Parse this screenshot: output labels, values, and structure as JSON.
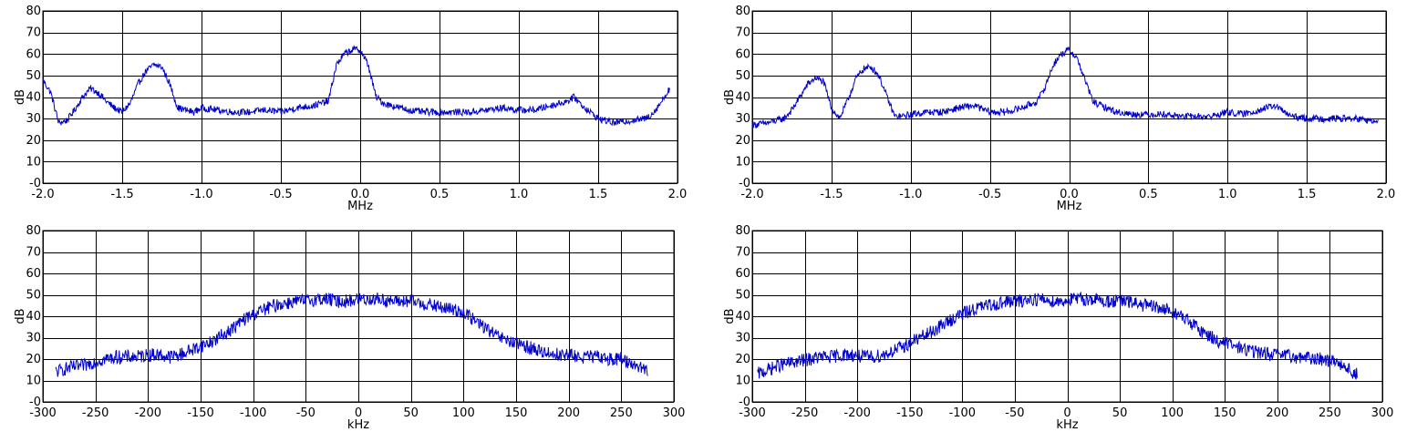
{
  "colors": {
    "trace": "#0000cc",
    "grid": "#000000",
    "background": "#ffffff"
  },
  "chart_data": [
    {
      "type": "line",
      "xlabel": "MHz",
      "ylabel": "dB",
      "xlim": [
        -2.0,
        2.0
      ],
      "ylim": [
        0,
        80
      ],
      "xticks": [
        -2.0,
        -1.5,
        -1.0,
        -0.5,
        0.0,
        0.5,
        1.0,
        1.5,
        2.0
      ],
      "xtick_labels": [
        "-2.0",
        "-1.5",
        "-1.0",
        "-0.5",
        "0.0",
        "0.5",
        "1.0",
        "1.5",
        "2.0"
      ],
      "yticks": [
        0,
        10,
        20,
        30,
        40,
        50,
        60,
        70,
        80
      ],
      "ytick_labels": [
        "-0",
        "10",
        "20",
        "30",
        "40",
        "50",
        "60",
        "70",
        "80"
      ],
      "grid": true,
      "series": [
        {
          "x": [
            -2.0,
            -1.95,
            -1.9,
            -1.85,
            -1.8,
            -1.75,
            -1.7,
            -1.65,
            -1.6,
            -1.55,
            -1.5,
            -1.45,
            -1.4,
            -1.35,
            -1.3,
            -1.25,
            -1.2,
            -1.15,
            -1.1,
            -1.05,
            -1.0,
            -0.9,
            -0.8,
            -0.7,
            -0.6,
            -0.5,
            -0.4,
            -0.3,
            -0.2,
            -0.15,
            -0.1,
            -0.05,
            0.0,
            0.05,
            0.1,
            0.15,
            0.2,
            0.3,
            0.4,
            0.5,
            0.6,
            0.7,
            0.8,
            0.9,
            1.0,
            1.1,
            1.2,
            1.3,
            1.35,
            1.4,
            1.5,
            1.6,
            1.7,
            1.8,
            1.85,
            1.9,
            1.95
          ],
          "y": [
            48,
            42,
            28,
            29,
            34,
            40,
            44,
            42,
            38,
            35,
            33,
            37,
            46,
            52,
            55,
            54,
            46,
            35,
            34,
            33,
            35,
            34,
            33,
            33,
            34,
            33,
            35,
            36,
            38,
            55,
            60,
            62,
            62,
            55,
            40,
            37,
            36,
            34,
            33,
            33,
            33,
            33,
            34,
            35,
            34,
            34,
            36,
            38,
            40,
            36,
            30,
            28,
            29,
            30,
            33,
            38,
            44
          ]
        }
      ]
    },
    {
      "type": "line",
      "xlabel": "MHz",
      "ylabel": "dB",
      "xlim": [
        -2.0,
        2.0
      ],
      "ylim": [
        0,
        80
      ],
      "xticks": [
        -2.0,
        -1.5,
        -1.0,
        -0.5,
        0.0,
        0.5,
        1.0,
        1.5,
        2.0
      ],
      "xtick_labels": [
        "-2.0",
        "-1.5",
        "-1.0",
        "-0.5",
        "0.0",
        "0.5",
        "1.0",
        "1.5",
        "2.0"
      ],
      "yticks": [
        0,
        10,
        20,
        30,
        40,
        50,
        60,
        70,
        80
      ],
      "ytick_labels": [
        "-0",
        "10",
        "20",
        "30",
        "40",
        "50",
        "60",
        "70",
        "80"
      ],
      "grid": true,
      "series": [
        {
          "x": [
            -2.0,
            -1.9,
            -1.8,
            -1.75,
            -1.7,
            -1.65,
            -1.6,
            -1.55,
            -1.5,
            -1.45,
            -1.4,
            -1.35,
            -1.3,
            -1.25,
            -1.2,
            -1.15,
            -1.1,
            -1.05,
            -1.0,
            -0.9,
            -0.8,
            -0.7,
            -0.6,
            -0.5,
            -0.4,
            -0.3,
            -0.2,
            -0.15,
            -0.1,
            -0.05,
            0.0,
            0.05,
            0.1,
            0.15,
            0.2,
            0.3,
            0.4,
            0.5,
            0.6,
            0.7,
            0.8,
            0.9,
            1.0,
            1.1,
            1.2,
            1.3,
            1.4,
            1.5,
            1.6,
            1.7,
            1.8,
            1.9,
            1.95
          ],
          "y": [
            27,
            28,
            30,
            34,
            40,
            46,
            49,
            47,
            35,
            30,
            38,
            48,
            53,
            54,
            50,
            40,
            31,
            31,
            32,
            33,
            33,
            35,
            36,
            33,
            33,
            35,
            38,
            45,
            55,
            60,
            62,
            58,
            48,
            38,
            36,
            33,
            32,
            32,
            32,
            31,
            31,
            31,
            33,
            32,
            34,
            36,
            31,
            30,
            30,
            30,
            30,
            29,
            28
          ]
        }
      ]
    },
    {
      "type": "line",
      "xlabel": "kHz",
      "ylabel": "dB",
      "xlim": [
        -300,
        300
      ],
      "ylim": [
        0,
        80
      ],
      "xticks": [
        -300,
        -250,
        -200,
        -150,
        -100,
        -50,
        0,
        50,
        100,
        150,
        200,
        250,
        300
      ],
      "xtick_labels": [
        "-300",
        "-250",
        "-200",
        "-150",
        "-100",
        "-50",
        "0",
        "50",
        "100",
        "150",
        "200",
        "250",
        "300"
      ],
      "yticks": [
        0,
        10,
        20,
        30,
        40,
        50,
        60,
        70,
        80
      ],
      "ytick_labels": [
        "-0",
        "10",
        "20",
        "30",
        "40",
        "50",
        "60",
        "70",
        "80"
      ],
      "grid": true,
      "series": [
        {
          "x": [
            -288,
            -275,
            -260,
            -250,
            -240,
            -230,
            -220,
            -210,
            -200,
            -190,
            -180,
            -170,
            -160,
            -150,
            -140,
            -130,
            -120,
            -110,
            -100,
            -90,
            -80,
            -70,
            -60,
            -50,
            -40,
            -30,
            -20,
            -10,
            0,
            10,
            20,
            30,
            40,
            50,
            60,
            70,
            80,
            90,
            100,
            110,
            120,
            130,
            140,
            150,
            160,
            170,
            180,
            190,
            200,
            210,
            220,
            230,
            240,
            250,
            260,
            270,
            275
          ],
          "y": [
            14,
            16,
            17,
            19,
            20,
            21,
            21,
            21,
            22,
            22,
            21,
            22,
            24,
            26,
            28,
            31,
            34,
            38,
            41,
            43,
            45,
            46,
            47,
            47,
            48,
            48,
            47,
            47,
            48,
            48,
            48,
            47,
            47,
            47,
            46,
            45,
            44,
            43,
            42,
            38,
            35,
            31,
            29,
            27,
            26,
            24,
            23,
            22,
            22,
            21,
            21,
            21,
            20,
            20,
            18,
            16,
            14
          ]
        }
      ]
    },
    {
      "type": "line",
      "xlabel": "kHz",
      "ylabel": "dB",
      "xlim": [
        -300,
        300
      ],
      "ylim": [
        0,
        80
      ],
      "xticks": [
        -300,
        -250,
        -200,
        -150,
        -100,
        -50,
        0,
        50,
        100,
        150,
        200,
        250,
        300
      ],
      "xtick_labels": [
        "-300",
        "-250",
        "-200",
        "-150",
        "-100",
        "-50",
        "0",
        "50",
        "100",
        "150",
        "200",
        "250",
        "300"
      ],
      "yticks": [
        0,
        10,
        20,
        30,
        40,
        50,
        60,
        70,
        80
      ],
      "ytick_labels": [
        "-0",
        "10",
        "20",
        "30",
        "40",
        "50",
        "60",
        "70",
        "80"
      ],
      "grid": true,
      "series": [
        {
          "x": [
            -295,
            -285,
            -275,
            -265,
            -255,
            -245,
            -235,
            -225,
            -215,
            -205,
            -195,
            -185,
            -175,
            -165,
            -155,
            -145,
            -135,
            -125,
            -115,
            -105,
            -95,
            -85,
            -75,
            -65,
            -55,
            -45,
            -35,
            -25,
            -15,
            -5,
            5,
            15,
            25,
            35,
            45,
            55,
            65,
            75,
            85,
            95,
            105,
            115,
            125,
            135,
            145,
            155,
            165,
            175,
            185,
            195,
            205,
            215,
            225,
            235,
            245,
            255,
            265,
            272,
            276
          ],
          "y": [
            13,
            15,
            17,
            18,
            19,
            20,
            21,
            21,
            22,
            22,
            21,
            21,
            22,
            24,
            26,
            29,
            31,
            34,
            37,
            40,
            42,
            44,
            45,
            46,
            47,
            47,
            48,
            48,
            47,
            47,
            48,
            48,
            48,
            47,
            47,
            47,
            46,
            45,
            44,
            43,
            41,
            38,
            34,
            31,
            28,
            27,
            25,
            24,
            23,
            22,
            22,
            21,
            21,
            20,
            20,
            19,
            17,
            13,
            13
          ]
        }
      ]
    }
  ]
}
